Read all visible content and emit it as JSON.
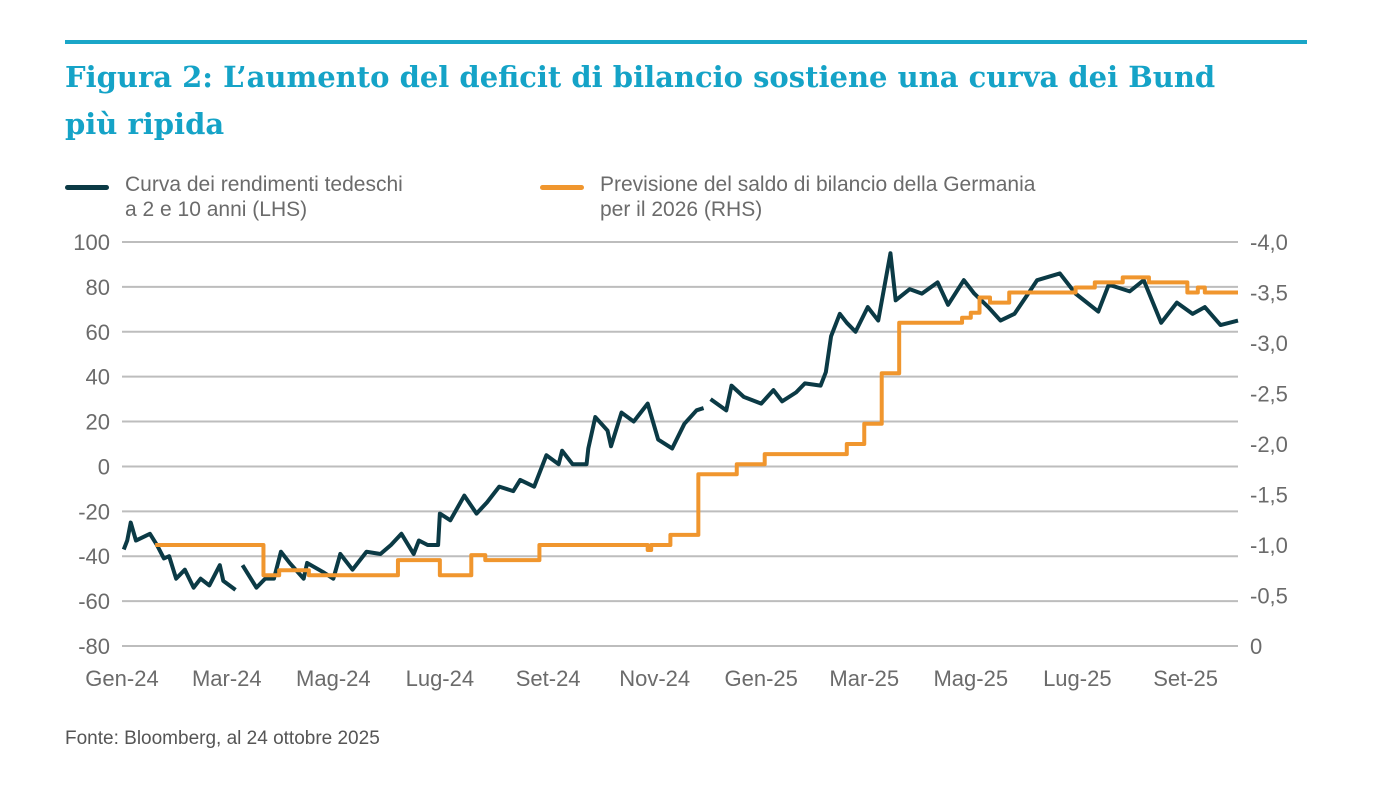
{
  "title": "Figura 2: L’aumento del deficit di bilancio sostiene una curva dei Bund più ripida",
  "source": "Fonte: Bloomberg, al 24 ottobre 2025",
  "colors": {
    "accent": "#1aa6c8",
    "series_lhs": "#0b3a45",
    "series_rhs": "#f0962e",
    "grid": "#bdbdbd",
    "text": "#6b6b6b"
  },
  "chart_data": {
    "type": "line",
    "title": "Figura 2: L’aumento del deficit di bilancio sostiene una curva dei Bund più ripida",
    "legend_position": "top",
    "grid": true,
    "x_ticks": [
      {
        "date": "2024-01-01",
        "label": "Gen-24"
      },
      {
        "date": "2024-03-01",
        "label": "Mar-24"
      },
      {
        "date": "2024-05-01",
        "label": "Mag-24"
      },
      {
        "date": "2024-07-01",
        "label": "Lug-24"
      },
      {
        "date": "2024-09-01",
        "label": "Set-24"
      },
      {
        "date": "2024-11-01",
        "label": "Nov-24"
      },
      {
        "date": "2025-01-01",
        "label": "Gen-25"
      },
      {
        "date": "2025-03-01",
        "label": "Mar-25"
      },
      {
        "date": "2025-05-01",
        "label": "Mag-25"
      },
      {
        "date": "2025-07-01",
        "label": "Lug-25"
      },
      {
        "date": "2025-09-01",
        "label": "Set-25"
      }
    ],
    "xlim": [
      "2024-01-01",
      "2025-10-01"
    ],
    "y_left": {
      "ylim": [
        -80,
        100
      ],
      "ticks": [
        "100",
        "80",
        "60",
        "40",
        "20",
        "0",
        "-20",
        "-40",
        "-60",
        "-80"
      ]
    },
    "y_right": {
      "ylim": [
        0,
        -4.0
      ],
      "inverted": true,
      "ticks": [
        "-4,0",
        "-3,5",
        "-3,0",
        "-2,5",
        "-2,0",
        "-1,5",
        "-1,0",
        "-0,5",
        "0"
      ]
    },
    "series": [
      {
        "name": "Curva dei rendimenti tedeschi\na 2 e 10 anni (LHS)",
        "axis": "left",
        "points": [
          [
            "2024-01-02",
            -37
          ],
          [
            "2024-01-04",
            -33
          ],
          [
            "2024-01-06",
            -25
          ],
          [
            "2024-01-09",
            -33
          ],
          [
            "2024-01-17",
            -30
          ],
          [
            "2024-01-21",
            -35
          ],
          [
            "2024-01-25",
            -41
          ],
          [
            "2024-01-28",
            -40
          ],
          [
            "2024-02-01",
            -50
          ],
          [
            "2024-02-06",
            -46
          ],
          [
            "2024-02-11",
            -54
          ],
          [
            "2024-02-15",
            -50
          ],
          [
            "2024-02-20",
            -53
          ],
          [
            "2024-02-26",
            -44
          ],
          [
            "2024-02-28",
            -51
          ],
          [
            "2024-03-06",
            -55
          ],
          [
            "2024-03-08",
            null
          ],
          [
            "2024-03-10",
            -44
          ],
          [
            "2024-03-18",
            -54
          ],
          [
            "2024-03-23",
            -50
          ],
          [
            "2024-03-28",
            -50
          ],
          [
            "2024-04-01",
            -38
          ],
          [
            "2024-04-06",
            -43
          ],
          [
            "2024-04-14",
            -50
          ],
          [
            "2024-04-16",
            -43
          ],
          [
            "2024-04-25",
            -47
          ],
          [
            "2024-05-01",
            -50
          ],
          [
            "2024-05-05",
            -39
          ],
          [
            "2024-05-12",
            -46
          ],
          [
            "2024-05-20",
            -38
          ],
          [
            "2024-05-28",
            -39
          ],
          [
            "2024-06-03",
            -35
          ],
          [
            "2024-06-09",
            -30
          ],
          [
            "2024-06-16",
            -39
          ],
          [
            "2024-06-19",
            -33
          ],
          [
            "2024-06-24",
            -35
          ],
          [
            "2024-06-30",
            -35
          ],
          [
            "2024-07-01",
            -21
          ],
          [
            "2024-07-07",
            -24
          ],
          [
            "2024-07-15",
            -13
          ],
          [
            "2024-07-22",
            -21
          ],
          [
            "2024-07-28",
            -16
          ],
          [
            "2024-08-04",
            -9
          ],
          [
            "2024-08-12",
            -11
          ],
          [
            "2024-08-16",
            -6
          ],
          [
            "2024-08-24",
            -9
          ],
          [
            "2024-08-31",
            5
          ],
          [
            "2024-09-07",
            1
          ],
          [
            "2024-09-09",
            7
          ],
          [
            "2024-09-15",
            1
          ],
          [
            "2024-09-23",
            1
          ],
          [
            "2024-09-24",
            8
          ],
          [
            "2024-09-28",
            22
          ],
          [
            "2024-10-05",
            16
          ],
          [
            "2024-10-07",
            9
          ],
          [
            "2024-10-13",
            24
          ],
          [
            "2024-10-20",
            20
          ],
          [
            "2024-10-28",
            28
          ],
          [
            "2024-11-03",
            12
          ],
          [
            "2024-11-11",
            8
          ],
          [
            "2024-11-18",
            19
          ],
          [
            "2024-11-25",
            25
          ],
          [
            "2024-11-29",
            26
          ],
          [
            "2024-12-01",
            null
          ],
          [
            "2024-12-03",
            30
          ],
          [
            "2024-12-12",
            25
          ],
          [
            "2024-12-15",
            36
          ],
          [
            "2024-12-22",
            31
          ],
          [
            "2025-01-01",
            28
          ],
          [
            "2025-01-08",
            34
          ],
          [
            "2025-01-13",
            29
          ],
          [
            "2025-01-21",
            33
          ],
          [
            "2025-01-26",
            37
          ],
          [
            "2025-02-04",
            36
          ],
          [
            "2025-02-07",
            42
          ],
          [
            "2025-02-10",
            58
          ],
          [
            "2025-02-15",
            68
          ],
          [
            "2025-02-19",
            64
          ],
          [
            "2025-02-24",
            60
          ],
          [
            "2025-03-03",
            71
          ],
          [
            "2025-03-09",
            65
          ],
          [
            "2025-03-16",
            95
          ],
          [
            "2025-03-19",
            74
          ],
          [
            "2025-03-27",
            79
          ],
          [
            "2025-04-03",
            77
          ],
          [
            "2025-04-12",
            82
          ],
          [
            "2025-04-18",
            72
          ],
          [
            "2025-04-27",
            83
          ],
          [
            "2025-05-03",
            77
          ],
          [
            "2025-05-11",
            71
          ],
          [
            "2025-05-18",
            65
          ],
          [
            "2025-05-26",
            68
          ],
          [
            "2025-06-02",
            76
          ],
          [
            "2025-06-08",
            83
          ],
          [
            "2025-06-21",
            86
          ],
          [
            "2025-06-30",
            77
          ],
          [
            "2025-07-13",
            69
          ],
          [
            "2025-07-19",
            81
          ],
          [
            "2025-07-31",
            78
          ],
          [
            "2025-08-08",
            83
          ],
          [
            "2025-08-18",
            64
          ],
          [
            "2025-08-27",
            73
          ],
          [
            "2025-09-05",
            68
          ],
          [
            "2025-09-12",
            71
          ],
          [
            "2025-09-21",
            63
          ],
          [
            "2025-10-01",
            65
          ]
        ]
      },
      {
        "name": "Previsione del saldo di bilancio della Germania\nper il 2026 (RHS)",
        "axis": "right",
        "step": true,
        "points": [
          [
            "2024-01-20",
            -1.0
          ],
          [
            "2024-03-22",
            -0.7
          ],
          [
            "2024-03-31",
            -0.75
          ],
          [
            "2024-04-17",
            -0.7
          ],
          [
            "2024-06-07",
            -0.85
          ],
          [
            "2024-07-01",
            -0.7
          ],
          [
            "2024-07-19",
            -0.9
          ],
          [
            "2024-07-27",
            -0.85
          ],
          [
            "2024-08-27",
            -1.0
          ],
          [
            "2024-10-28",
            -0.95
          ],
          [
            "2024-10-30",
            -1.0
          ],
          [
            "2024-11-10",
            -1.1
          ],
          [
            "2024-11-26",
            -1.7
          ],
          [
            "2024-12-18",
            -1.8
          ],
          [
            "2025-01-03",
            -1.9
          ],
          [
            "2025-02-19",
            -2.0
          ],
          [
            "2025-03-01",
            -2.2
          ],
          [
            "2025-03-11",
            -2.7
          ],
          [
            "2025-03-21",
            -3.2
          ],
          [
            "2025-04-26",
            -3.25
          ],
          [
            "2025-05-01",
            -3.3
          ],
          [
            "2025-05-06",
            -3.45
          ],
          [
            "2025-05-12",
            -3.4
          ],
          [
            "2025-05-23",
            -3.5
          ],
          [
            "2025-06-30",
            -3.55
          ],
          [
            "2025-07-11",
            -3.6
          ],
          [
            "2025-07-27",
            -3.65
          ],
          [
            "2025-08-11",
            -3.6
          ],
          [
            "2025-09-02",
            -3.5
          ],
          [
            "2025-09-08",
            -3.55
          ],
          [
            "2025-09-12",
            -3.5
          ],
          [
            "2025-10-01",
            -3.5
          ]
        ]
      }
    ]
  }
}
